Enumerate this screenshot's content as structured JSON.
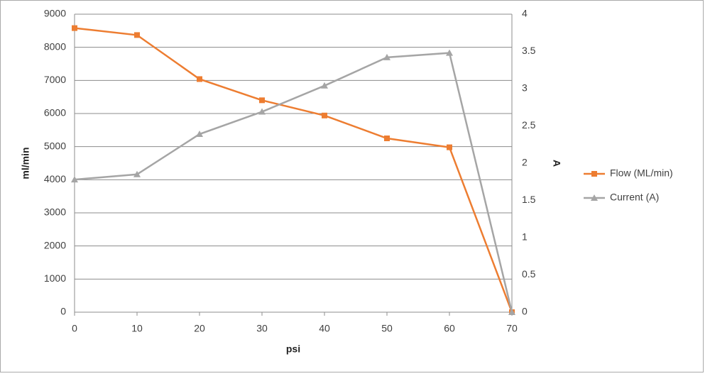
{
  "chart_data": {
    "type": "line",
    "x_label": "psi",
    "y_label": "ml/min",
    "y2_label": "A",
    "x": [
      0,
      10,
      20,
      30,
      40,
      50,
      60,
      70
    ],
    "xlim": [
      0,
      70
    ],
    "xticks": [
      0,
      10,
      20,
      30,
      40,
      50,
      60,
      70
    ],
    "ylim": [
      0,
      9000
    ],
    "yticks": [
      0,
      1000,
      2000,
      3000,
      4000,
      5000,
      6000,
      7000,
      8000,
      9000
    ],
    "y2lim": [
      0,
      4
    ],
    "y2ticks": [
      0,
      0.5,
      1,
      1.5,
      2,
      2.5,
      3,
      3.5,
      4
    ],
    "grid": true,
    "legend": "right",
    "series": [
      {
        "name": "Flow (ML/min)",
        "color": "#ed7d31",
        "marker": "square",
        "values": [
          8580,
          8370,
          7040,
          6400,
          5940,
          5250,
          4980,
          0
        ]
      },
      {
        "name": "Current (A)",
        "color": "#a5a5a5",
        "marker": "triangle",
        "axis": "y2",
        "values": [
          1.78,
          1.85,
          2.39,
          2.69,
          3.04,
          3.42,
          3.48,
          0
        ]
      }
    ]
  }
}
